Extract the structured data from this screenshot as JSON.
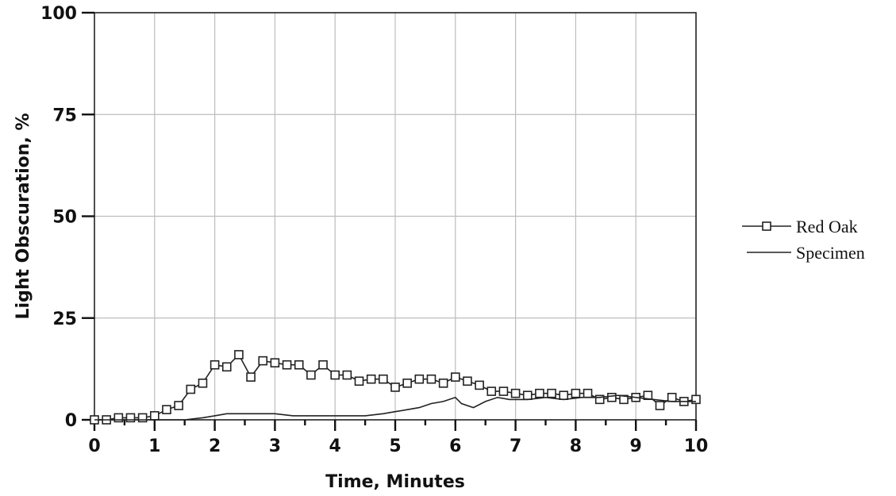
{
  "chart_data": {
    "type": "line",
    "xlabel": "Time,  Minutes",
    "ylabel": "Light Obscuration, %",
    "xlim": [
      0,
      10
    ],
    "ylim": [
      0,
      100
    ],
    "x_ticks": [
      "0",
      "1",
      "2",
      "3",
      "4",
      "5",
      "6",
      "7",
      "8",
      "9",
      "10"
    ],
    "y_ticks": [
      "0",
      "25",
      "50",
      "75",
      "100"
    ],
    "grid": true,
    "legend_position": "right",
    "series": [
      {
        "name": "Red Oak",
        "marker": "square",
        "x": [
          0,
          0.2,
          0.4,
          0.6,
          0.8,
          1.0,
          1.2,
          1.4,
          1.6,
          1.8,
          2.0,
          2.2,
          2.4,
          2.6,
          2.8,
          3.0,
          3.2,
          3.4,
          3.6,
          3.8,
          4.0,
          4.2,
          4.4,
          4.6,
          4.8,
          5.0,
          5.2,
          5.4,
          5.6,
          5.8,
          6.0,
          6.2,
          6.4,
          6.6,
          6.8,
          7.0,
          7.2,
          7.4,
          7.6,
          7.8,
          8.0,
          8.2,
          8.4,
          8.6,
          8.8,
          9.0,
          9.2,
          9.4,
          9.6,
          9.8,
          10.0
        ],
        "y": [
          0,
          0,
          0.5,
          0.5,
          0.5,
          1,
          2.5,
          3.5,
          7.5,
          9,
          13.5,
          13,
          16,
          10.5,
          14.5,
          14,
          13.5,
          13.5,
          11,
          13.5,
          11,
          11,
          9.5,
          10,
          10,
          8,
          9,
          10,
          10,
          9,
          10.5,
          9.5,
          8.5,
          7,
          7,
          6.5,
          6,
          6.5,
          6.5,
          6,
          6.5,
          6.5,
          5,
          5.5,
          5,
          5.5,
          6,
          3.5,
          5.5,
          4.5,
          5
        ]
      },
      {
        "name": "Specimen",
        "marker": "none",
        "x": [
          0,
          0.5,
          1.0,
          1.5,
          1.8,
          2.0,
          2.2,
          2.5,
          2.8,
          3.0,
          3.3,
          3.6,
          3.9,
          4.2,
          4.5,
          4.8,
          5.0,
          5.2,
          5.4,
          5.6,
          5.8,
          6.0,
          6.1,
          6.3,
          6.5,
          6.7,
          6.9,
          7.2,
          7.5,
          7.8,
          8.1,
          8.4,
          8.7,
          9.0,
          9.3,
          9.6,
          10.0
        ],
        "y": [
          0,
          0,
          0,
          0,
          0.5,
          1,
          1.5,
          1.5,
          1.5,
          1.5,
          1,
          1,
          1,
          1,
          1,
          1.5,
          2,
          2.5,
          3,
          4,
          4.5,
          5.5,
          4,
          3,
          4.5,
          5.5,
          5,
          5,
          5.5,
          5,
          5.5,
          5.5,
          6,
          5.5,
          5,
          4.5,
          4.5
        ]
      }
    ]
  }
}
